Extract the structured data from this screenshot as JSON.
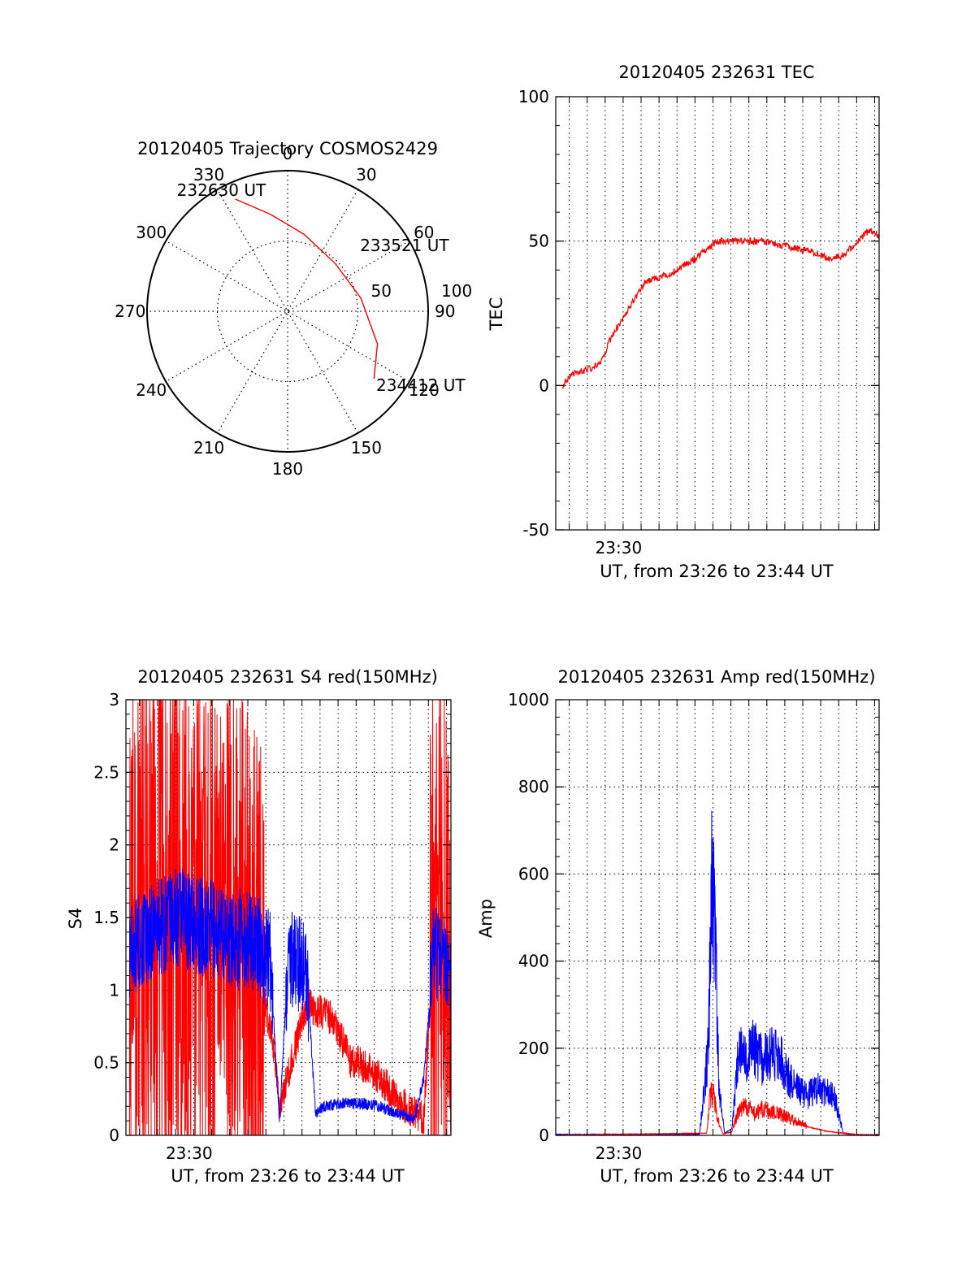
{
  "chart_data": [
    {
      "type": "polar",
      "title": "20120405 Trajectory COSMOS2429",
      "theta_labels": [
        "0",
        "30",
        "60",
        "90",
        "120",
        "150",
        "180",
        "210",
        "240",
        "270",
        "300",
        "330"
      ],
      "radial_labels": [
        "50",
        "100"
      ],
      "radial_range": [
        0,
        100
      ],
      "grid": true,
      "series": [
        {
          "color": "#ff0000",
          "points": [
            {
              "theta": 335,
              "r": 88
            },
            {
              "theta": 350,
              "r": 70
            },
            {
              "theta": 12,
              "r": 56
            },
            {
              "theta": 45,
              "r": 48
            },
            {
              "theta": 80,
              "r": 53
            },
            {
              "theta": 110,
              "r": 68
            },
            {
              "theta": 128,
              "r": 78
            }
          ]
        }
      ],
      "annotations": [
        {
          "text": "232630 UT",
          "theta": 335,
          "r": 88
        },
        {
          "text": "233521 UT",
          "theta": 65,
          "r": 60
        },
        {
          "text": "234412 UT",
          "theta": 128,
          "r": 80
        }
      ]
    },
    {
      "type": "line",
      "title": "20120405 232631 TEC",
      "xlabel": "UT, from 23:26 to 23:44 UT",
      "ylabel": "TEC",
      "xlim": [
        0,
        18
      ],
      "ylim": [
        -50,
        100
      ],
      "yticks": [
        -50,
        0,
        50,
        100
      ],
      "xtick_labels": [
        {
          "x": 3.5,
          "label": "23:30"
        }
      ],
      "grid": true,
      "series": [
        {
          "color": "#ff0000",
          "x": [
            0.4,
            1.0,
            2.0,
            2.6,
            3.1,
            4.0,
            5.0,
            5.5,
            6.5,
            8.0,
            9.0,
            10.0,
            11.5,
            13.0,
            14.5,
            15.3,
            16.0,
            16.8,
            17.5,
            18.0
          ],
          "y": [
            0,
            4,
            6,
            9,
            17,
            26,
            36,
            37,
            39,
            45,
            50,
            50,
            50,
            48,
            46,
            44,
            45,
            50,
            54,
            52
          ]
        }
      ]
    },
    {
      "type": "line",
      "title": "20120405 232631 S4 red(150MHz)",
      "xlabel": "UT, from 23:26 to 23:44 UT",
      "ylabel": "S4",
      "xlim": [
        0,
        18
      ],
      "ylim": [
        0,
        3
      ],
      "yticks": [
        0,
        0.5,
        1,
        1.5,
        2,
        2.5,
        3
      ],
      "ytick_labels": [
        "0",
        "0.5",
        "1",
        "1.5",
        "2",
        "2.5",
        "3"
      ],
      "xtick_labels": [
        {
          "x": 3.5,
          "label": "23:30"
        }
      ],
      "grid": true,
      "series": [
        {
          "color": "#ff0000",
          "x": [
            0.2,
            1,
            2,
            3,
            4,
            5,
            6,
            6.5,
            7.5,
            8.2,
            8.5,
            10,
            11.5,
            12.5,
            13,
            14,
            15,
            16,
            16.5,
            17,
            17.5,
            18
          ],
          "y": [
            1.4,
            1.5,
            1.5,
            1.5,
            1.4,
            1.4,
            1.5,
            1.2,
            1.0,
            0.6,
            0.2,
            0.9,
            0.8,
            0.5,
            0.5,
            0.4,
            0.25,
            0.15,
            0.12,
            1.3,
            1.4,
            1.3
          ]
        },
        {
          "color": "#0000ff",
          "x": [
            0.2,
            1,
            2,
            3,
            4,
            5,
            6,
            7,
            8,
            8.5,
            9,
            9.5,
            10,
            10.5,
            11,
            12,
            13,
            14,
            15,
            16,
            16.5,
            17,
            17.5,
            18
          ],
          "y": [
            1.3,
            1.35,
            1.45,
            1.5,
            1.45,
            1.4,
            1.35,
            1.35,
            1.2,
            0.1,
            1.25,
            1.2,
            1.15,
            0.15,
            0.2,
            0.22,
            0.22,
            0.2,
            0.15,
            0.12,
            0.4,
            1.2,
            1.25,
            1.2
          ]
        }
      ]
    },
    {
      "type": "line",
      "title": "20120405 232631 Amp red(150MHz)",
      "xlabel": "UT, from 23:26 to 23:44 UT",
      "ylabel": "Amp",
      "xlim": [
        0,
        18
      ],
      "ylim": [
        0,
        1000
      ],
      "yticks": [
        0,
        200,
        400,
        600,
        800,
        1000
      ],
      "xtick_labels": [
        {
          "x": 3.5,
          "label": "23:30"
        }
      ],
      "grid": true,
      "series": [
        {
          "color": "#0000ff",
          "x": [
            0,
            4,
            8,
            8.5,
            8.7,
            8.9,
            9.1,
            9.4,
            9.8,
            10.2,
            10.6,
            11.0,
            11.5,
            12.0,
            12.5,
            13.0,
            13.5,
            14.0,
            14.5,
            15.0,
            15.5,
            16.0,
            16.5,
            17.0,
            18.0
          ],
          "y": [
            2,
            2,
            2,
            200,
            620,
            400,
            100,
            5,
            15,
            200,
            180,
            200,
            170,
            190,
            180,
            130,
            110,
            90,
            110,
            100,
            90,
            5,
            1,
            1,
            1
          ]
        },
        {
          "color": "#ff0000",
          "x": [
            0,
            8.4,
            8.6,
            8.8,
            9.0,
            9.3,
            9.8,
            10.2,
            10.6,
            11.0,
            11.5,
            12.0,
            13.0,
            14.0,
            15.0,
            16.0,
            17.0,
            18.0
          ],
          "y": [
            0,
            5,
            90,
            100,
            40,
            3,
            8,
            60,
            70,
            50,
            60,
            55,
            40,
            20,
            10,
            5,
            1,
            1
          ]
        }
      ]
    }
  ]
}
